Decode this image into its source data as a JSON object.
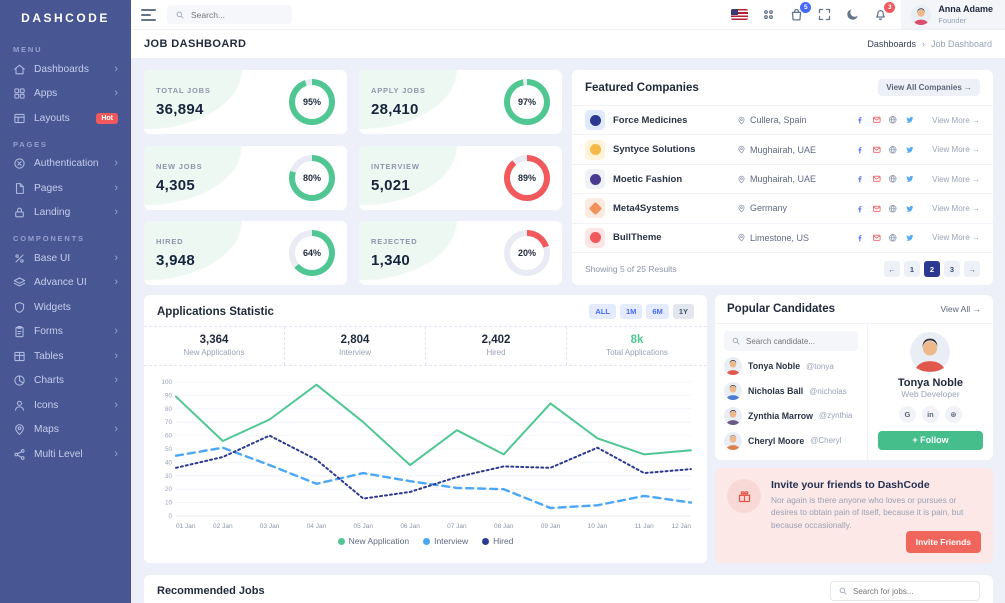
{
  "ui": {
    "chevron": "›",
    "crumb_sep": "›"
  },
  "sidebar": {
    "logo": "DASHCODE",
    "sections": [
      {
        "label": "MENU",
        "items": [
          {
            "label": "Dashboards",
            "icon": "home",
            "chevron": true
          },
          {
            "label": "Apps",
            "icon": "grid",
            "chevron": true
          },
          {
            "label": "Layouts",
            "icon": "layout",
            "badge": "Hot",
            "chevron": false
          }
        ]
      },
      {
        "label": "PAGES",
        "items": [
          {
            "label": "Authentication",
            "icon": "auth",
            "chevron": true
          },
          {
            "label": "Pages",
            "icon": "file",
            "chevron": true
          },
          {
            "label": "Landing",
            "icon": "lock",
            "chevron": true
          }
        ]
      },
      {
        "label": "COMPONENTS",
        "items": [
          {
            "label": "Base UI",
            "icon": "percent",
            "chevron": true
          },
          {
            "label": "Advance UI",
            "icon": "layers",
            "chevron": true
          },
          {
            "label": "Widgets",
            "icon": "shield",
            "chevron": false
          },
          {
            "label": "Forms",
            "icon": "clipboard",
            "chevron": true
          },
          {
            "label": "Tables",
            "icon": "table",
            "chevron": true
          },
          {
            "label": "Charts",
            "icon": "pie",
            "chevron": true
          },
          {
            "label": "Icons",
            "icon": "person",
            "chevron": true
          },
          {
            "label": "Maps",
            "icon": "pin",
            "chevron": true
          },
          {
            "label": "Multi Level",
            "icon": "share",
            "chevron": true
          }
        ]
      }
    ]
  },
  "header": {
    "search_placeholder": "Search...",
    "cart_badge": "5",
    "bell_badge": "3",
    "user": {
      "name": "Anna Adame",
      "role": "Founder",
      "shirt": "#D94F6B",
      "hair": "#1F1B24"
    }
  },
  "pagebar": {
    "title": "JOB DASHBOARD",
    "crumbs": [
      "Dashboards",
      "Job Dashboard"
    ]
  },
  "stats": [
    {
      "label": "TOTAL JOBS",
      "value": "36,894",
      "percent": 95,
      "pct_label": "95%",
      "color": "#50C793"
    },
    {
      "label": "APPLY JOBS",
      "value": "28,410",
      "percent": 97,
      "pct_label": "97%",
      "color": "#50C793"
    },
    {
      "label": "NEW JOBS",
      "value": "4,305",
      "percent": 80,
      "pct_label": "80%",
      "color": "#50C793"
    },
    {
      "label": "INTERVIEW",
      "value": "5,021",
      "percent": 89,
      "pct_label": "89%",
      "color": "#F1595C"
    },
    {
      "label": "HIRED",
      "value": "3,948",
      "percent": 64,
      "pct_label": "64%",
      "color": "#50C793"
    },
    {
      "label": "REJECTED",
      "value": "1,340",
      "percent": 20,
      "pct_label": "20%",
      "color": "#F1595C"
    }
  ],
  "companies": {
    "title": "Featured Companies",
    "view_all": "View All Companies →",
    "view_more": "View More →",
    "rows": [
      {
        "name": "Force Medicines",
        "location": "Cullera, Spain",
        "logo_bg": "#E0EAFF",
        "logo_color": "#2B3990",
        "logo_shape": "circle"
      },
      {
        "name": "Syntyce Solutions",
        "location": "Mughairah, UAE",
        "logo_bg": "#FFF3D8",
        "logo_color": "#F5B849",
        "logo_shape": "circle"
      },
      {
        "name": "Moetic Fashion",
        "location": "Mughairah, UAE",
        "logo_bg": "#EEF1F6",
        "logo_color": "#4B3A8F",
        "logo_shape": "circle"
      },
      {
        "name": "Meta4Systems",
        "location": "Germany",
        "logo_bg": "#FCE9E0",
        "logo_color": "#F0905A",
        "logo_shape": "diamond"
      },
      {
        "name": "BullTheme",
        "location": "Limestone, US",
        "logo_bg": "#FCE5E4",
        "logo_color": "#F1595C",
        "logo_shape": "circle"
      }
    ],
    "socials": [
      "facebook-icon",
      "mail-icon",
      "globe-icon",
      "twitter-icon"
    ],
    "footer": {
      "showing": "Showing 5 of 25 Results",
      "prev": "←",
      "next": "→",
      "pages": [
        "1",
        "2",
        "3"
      ],
      "active_page": "2"
    }
  },
  "chart_card": {
    "title": "Applications Statistic",
    "tabs": [
      {
        "label": "ALL",
        "active": false
      },
      {
        "label": "1M",
        "active": false
      },
      {
        "label": "6M",
        "active": false
      },
      {
        "label": "1Y",
        "active": true
      }
    ],
    "stats": [
      {
        "value": "3,364",
        "label": "New Applications",
        "color": "#1E293B"
      },
      {
        "value": "2,804",
        "label": "Interview",
        "color": "#1E293B"
      },
      {
        "value": "2,402",
        "label": "Hired",
        "color": "#1E293B"
      },
      {
        "value": "8k",
        "label": "Total Applications",
        "color": "#50C793"
      }
    ]
  },
  "chart_data": {
    "type": "line",
    "title": "Applications Statistic",
    "x": [
      "01 Jan",
      "02 Jan",
      "03 Jan",
      "04 Jan",
      "05 Jan",
      "06 Jan",
      "07 Jan",
      "08 Jan",
      "09 Jan",
      "10 Jan",
      "11 Jan",
      "12 Jan"
    ],
    "ylim": [
      0,
      100
    ],
    "ytick_step": 10,
    "grid": true,
    "legend_position": "bottom",
    "series": [
      {
        "name": "New Application",
        "color": "#50C793",
        "style": "solid",
        "values": [
          89,
          56,
          72,
          98,
          70,
          38,
          64,
          46,
          84,
          58,
          46,
          49
        ]
      },
      {
        "name": "Interview",
        "color": "#4BA7F5",
        "style": "dashed",
        "values": [
          45,
          51,
          38,
          24,
          32,
          26,
          21,
          20,
          6,
          8,
          15,
          10
        ]
      },
      {
        "name": "Hired",
        "color": "#2B3A90",
        "style": "dotted",
        "values": [
          36,
          44,
          60,
          42,
          13,
          18,
          29,
          37,
          36,
          51,
          32,
          35
        ]
      }
    ]
  },
  "candidates": {
    "title": "Popular Candidates",
    "view_all": "View All →",
    "search_placeholder": "Search candidate...",
    "list": [
      {
        "name": "Tonya Noble",
        "handle": "@tonya",
        "shirt": "#E2574C",
        "hair": "#2E2833"
      },
      {
        "name": "Nicholas Ball",
        "handle": "@nicholas",
        "shirt": "#4A7BD0",
        "hair": "#3A2F28"
      },
      {
        "name": "Zynthia Marrow",
        "handle": "@zynthia",
        "shirt": "#6B5B8A",
        "hair": "#241F2E"
      },
      {
        "name": "Cheryl Moore",
        "handle": "@Cheryl",
        "shirt": "#D9824C",
        "hair": "#8C8C8C"
      }
    ],
    "profile": {
      "name": "Tonya Noble",
      "role": "Web Developer",
      "shirt": "#E2574C",
      "hair": "#2E2833",
      "socials": [
        "G",
        "in",
        "⊛"
      ],
      "follow_label": "+  Follow"
    }
  },
  "invite": {
    "title": "Invite your friends to DashCode",
    "body": "Nor again is there anyone who loves or pursues or desires to obtain pain of itself, because it is pain, but because occasionally.",
    "button": "Invite Friends"
  },
  "recommended": {
    "title": "Recommended Jobs",
    "search_placeholder": "Search for jobs..."
  }
}
